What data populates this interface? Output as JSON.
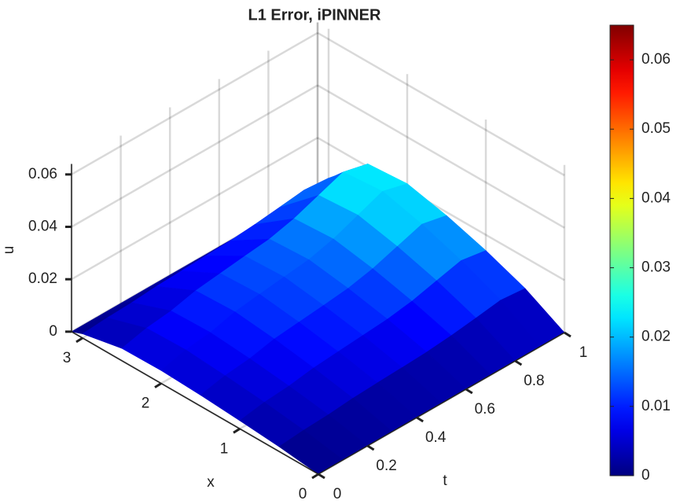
{
  "chart_data": {
    "type": "surface",
    "title": "L1 Error, iPINNER",
    "xlabel": "x",
    "tlabel": "t",
    "zlabel": "u",
    "x": [
      0,
      0.5,
      1,
      1.5,
      2,
      2.5,
      3,
      3.14
    ],
    "t": [
      0,
      0.1,
      0.2,
      0.3,
      0.4,
      0.5,
      0.6,
      0.7,
      0.8,
      0.9,
      1
    ],
    "u": [
      [
        0,
        0,
        0,
        0,
        0,
        0,
        0,
        0,
        0,
        0,
        0
      ],
      [
        0.0018,
        0.0027,
        0.0032,
        0.0041,
        0.0046,
        0.005,
        0.0055,
        0.0064,
        0.0077,
        0.0091,
        0.0082
      ],
      [
        0.0031,
        0.0047,
        0.0055,
        0.007,
        0.0078,
        0.0086,
        0.0094,
        0.0109,
        0.0133,
        0.0156,
        0.014
      ],
      [
        0.0042,
        0.0062,
        0.0073,
        0.0094,
        0.0104,
        0.0114,
        0.0125,
        0.0146,
        0.0177,
        0.0208,
        0.0187
      ],
      [
        0.0049,
        0.0074,
        0.0086,
        0.0111,
        0.0124,
        0.0136,
        0.0148,
        0.0173,
        0.021,
        0.0247,
        0.0222
      ],
      [
        0.0047,
        0.007,
        0.0082,
        0.0105,
        0.0117,
        0.0129,
        0.014,
        0.0164,
        0.0199,
        0.0234,
        0.0211
      ],
      [
        0.0016,
        0.0023,
        0.0027,
        0.0035,
        0.0039,
        0.0043,
        0.0047,
        0.0055,
        0.0066,
        0.0078,
        0.007
      ],
      [
        0,
        0,
        0,
        0,
        0,
        0,
        0,
        0,
        0,
        0,
        0
      ]
    ],
    "xlim": [
      0,
      3.14
    ],
    "tlim": [
      0,
      1
    ],
    "zlim": [
      0,
      0.064
    ],
    "xticks": [
      0,
      1,
      2,
      3
    ],
    "tticks": [
      0,
      0.2,
      0.4,
      0.6,
      0.8,
      1
    ],
    "zticks": [
      0,
      0.02,
      0.04,
      0.06
    ],
    "grid": true,
    "colormap": "jet",
    "clim": [
      0,
      0.065
    ],
    "cticks": [
      0,
      0.01,
      0.02,
      0.03,
      0.04,
      0.05,
      0.06
    ]
  }
}
